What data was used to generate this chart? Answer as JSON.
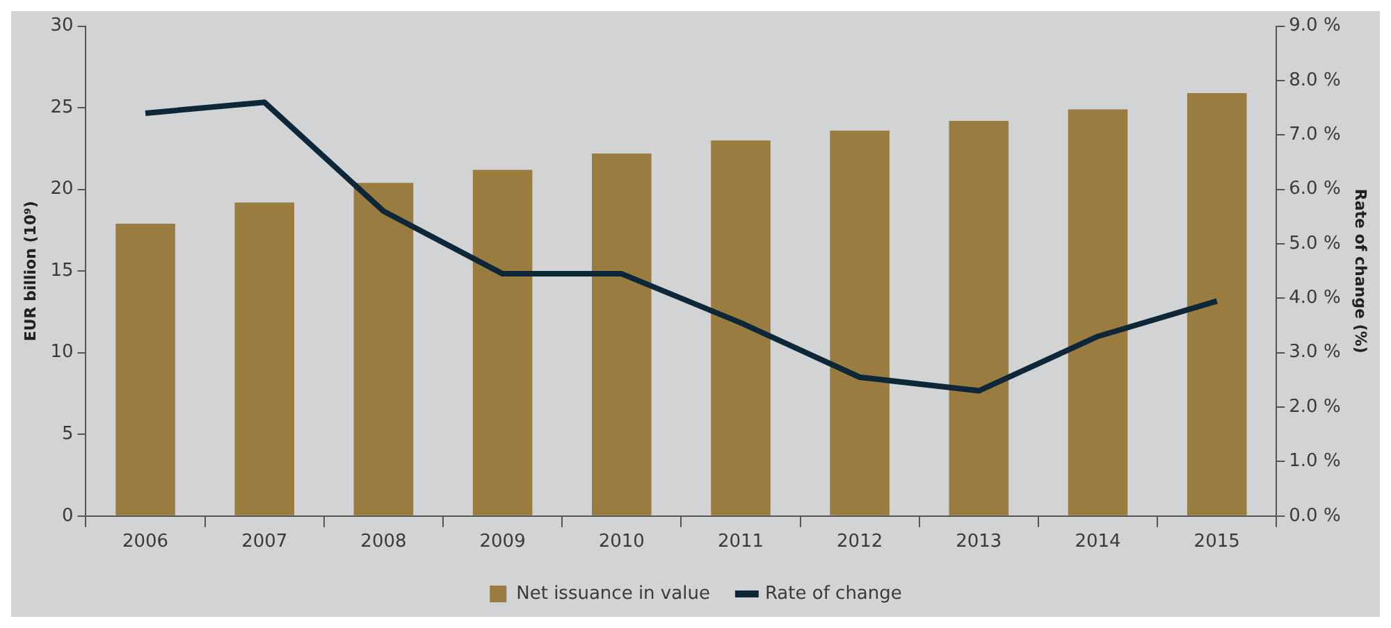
{
  "chart_data": {
    "type": "bar",
    "categories": [
      "2006",
      "2007",
      "2008",
      "2009",
      "2010",
      "2011",
      "2012",
      "2013",
      "2014",
      "2015"
    ],
    "series": [
      {
        "name": "Net issuance in value",
        "color": "#9a7c40",
        "values": [
          17.9,
          19.2,
          20.4,
          21.2,
          22.2,
          23.0,
          23.6,
          24.2,
          24.9,
          25.9
        ]
      },
      {
        "name": "Rate of change",
        "type": "line",
        "axis": "y2",
        "color": "#0d2738",
        "values": [
          7.4,
          7.6,
          5.6,
          4.45,
          4.45,
          3.55,
          2.55,
          2.3,
          3.3,
          3.95
        ]
      }
    ],
    "ylabel": "EUR billion (10⁹)",
    "y2label": "Rate of change (%)",
    "ylim": [
      0,
      30
    ],
    "yticks": [
      0,
      5,
      10,
      15,
      20,
      25,
      30
    ],
    "y2lim": [
      0,
      9
    ],
    "y2ticks": [
      {
        "value": 0,
        "label": "0.0 %"
      },
      {
        "value": 1,
        "label": "1.0 %"
      },
      {
        "value": 2,
        "label": "2.0 %"
      },
      {
        "value": 3,
        "label": "3.0 %"
      },
      {
        "value": 4,
        "label": "4.0 %"
      },
      {
        "value": 5,
        "label": "5.0 %"
      },
      {
        "value": 6,
        "label": "6.0 %"
      },
      {
        "value": 7,
        "label": "7.0 %"
      },
      {
        "value": 8,
        "label": "8.0 %"
      },
      {
        "value": 9,
        "label": "9.0 %"
      }
    ],
    "grid": false,
    "legend": "bottom",
    "marker": "none",
    "line_style": "solid"
  }
}
